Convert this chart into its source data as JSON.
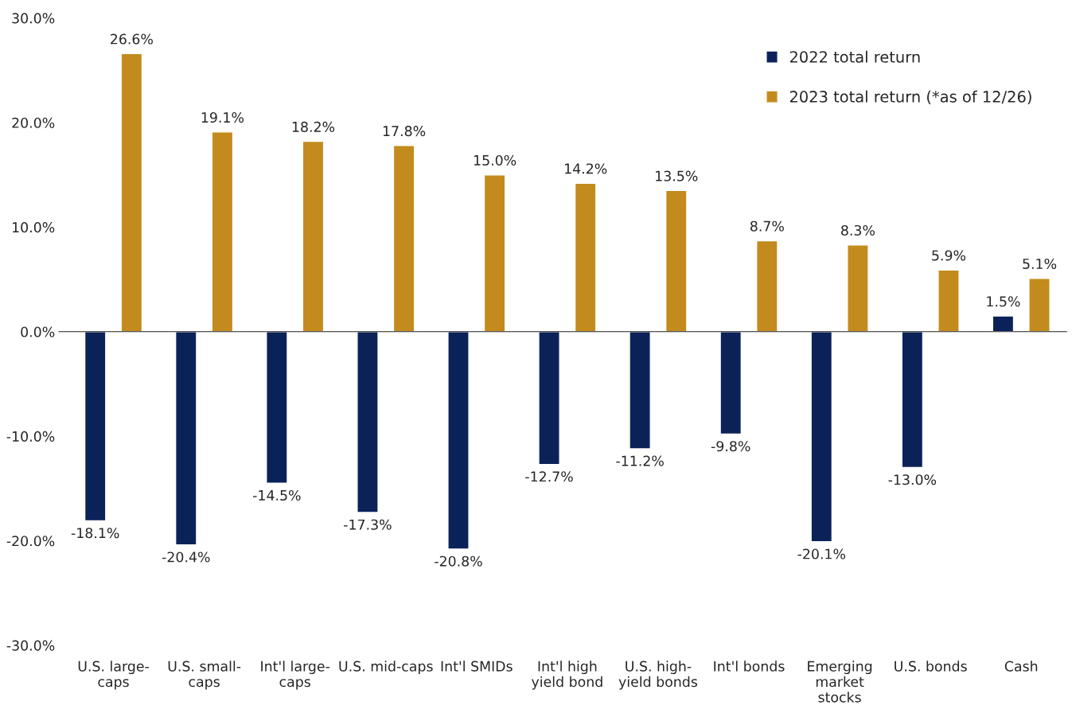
{
  "chart_data": {
    "type": "bar",
    "categories": [
      "U.S. large-\ncaps",
      "U.S. small-\ncaps",
      "Int'l large-\ncaps",
      "U.S. mid-caps",
      "Int'l SMIDs",
      "Int'l high\nyield bond",
      "U.S. high-\nyield bonds",
      "Int'l bonds",
      "Emerging\nmarket\nstocks",
      "U.S. bonds",
      "Cash"
    ],
    "series": [
      {
        "name": "2022 total return",
        "color": "#0b2259",
        "values": [
          -18.1,
          -20.4,
          -14.5,
          -17.3,
          -20.8,
          -12.7,
          -11.2,
          -9.8,
          -20.1,
          -13.0,
          1.5
        ],
        "value_labels": [
          "-18.1%",
          "-20.4%",
          "-14.5%",
          "-17.3%",
          "-20.8%",
          "-12.7%",
          "-11.2%",
          "-9.8%",
          "-20.1%",
          "-13.0%",
          "1.5%"
        ]
      },
      {
        "name": "2023 total return (*as of 12/26)",
        "color": "#c38b1d",
        "values": [
          26.6,
          19.1,
          18.2,
          17.8,
          15.0,
          14.2,
          13.5,
          8.7,
          8.3,
          5.9,
          5.1
        ],
        "value_labels": [
          "26.6%",
          "19.1%",
          "18.2%",
          "17.8%",
          "15.0%",
          "14.2%",
          "13.5%",
          "8.7%",
          "8.3%",
          "5.9%",
          "5.1%"
        ]
      }
    ],
    "ylim": [
      -30,
      30
    ],
    "yticks": [
      {
        "value": -30,
        "label": "-30.0%"
      },
      {
        "value": -20,
        "label": "-20.0%"
      },
      {
        "value": -10,
        "label": "-10.0%"
      },
      {
        "value": 0,
        "label": "0.0%"
      },
      {
        "value": 10,
        "label": "10.0%"
      },
      {
        "value": 20,
        "label": "20.0%"
      },
      {
        "value": 30,
        "label": "30.0%"
      }
    ],
    "legend": "top right"
  }
}
